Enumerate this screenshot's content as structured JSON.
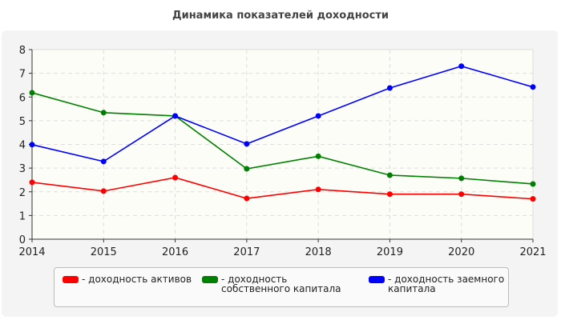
{
  "chart_data": {
    "type": "line",
    "title": "Динамика показателей доходности",
    "x": [
      "2014",
      "2015",
      "2016",
      "2017",
      "2018",
      "2019",
      "2020",
      "2021"
    ],
    "ylim": [
      0,
      8
    ],
    "yticks": [
      0,
      1,
      2,
      3,
      4,
      5,
      6,
      7,
      8
    ],
    "grid": true,
    "legend_position": "bottom",
    "series": [
      {
        "name": "- доходность активов",
        "color": "#ff0000",
        "values": [
          2.4,
          2.03,
          2.6,
          1.72,
          2.1,
          1.9,
          1.9,
          1.7
        ]
      },
      {
        "name": "- доходность собственного капитала",
        "color": "#008000",
        "values": [
          6.18,
          5.34,
          5.2,
          2.97,
          3.5,
          2.7,
          2.57,
          2.33
        ]
      },
      {
        "name": "- доходность заемного капитала",
        "color": "#0000ff",
        "values": [
          3.99,
          3.28,
          5.2,
          4.02,
          5.2,
          6.38,
          7.3,
          6.42
        ]
      }
    ]
  }
}
